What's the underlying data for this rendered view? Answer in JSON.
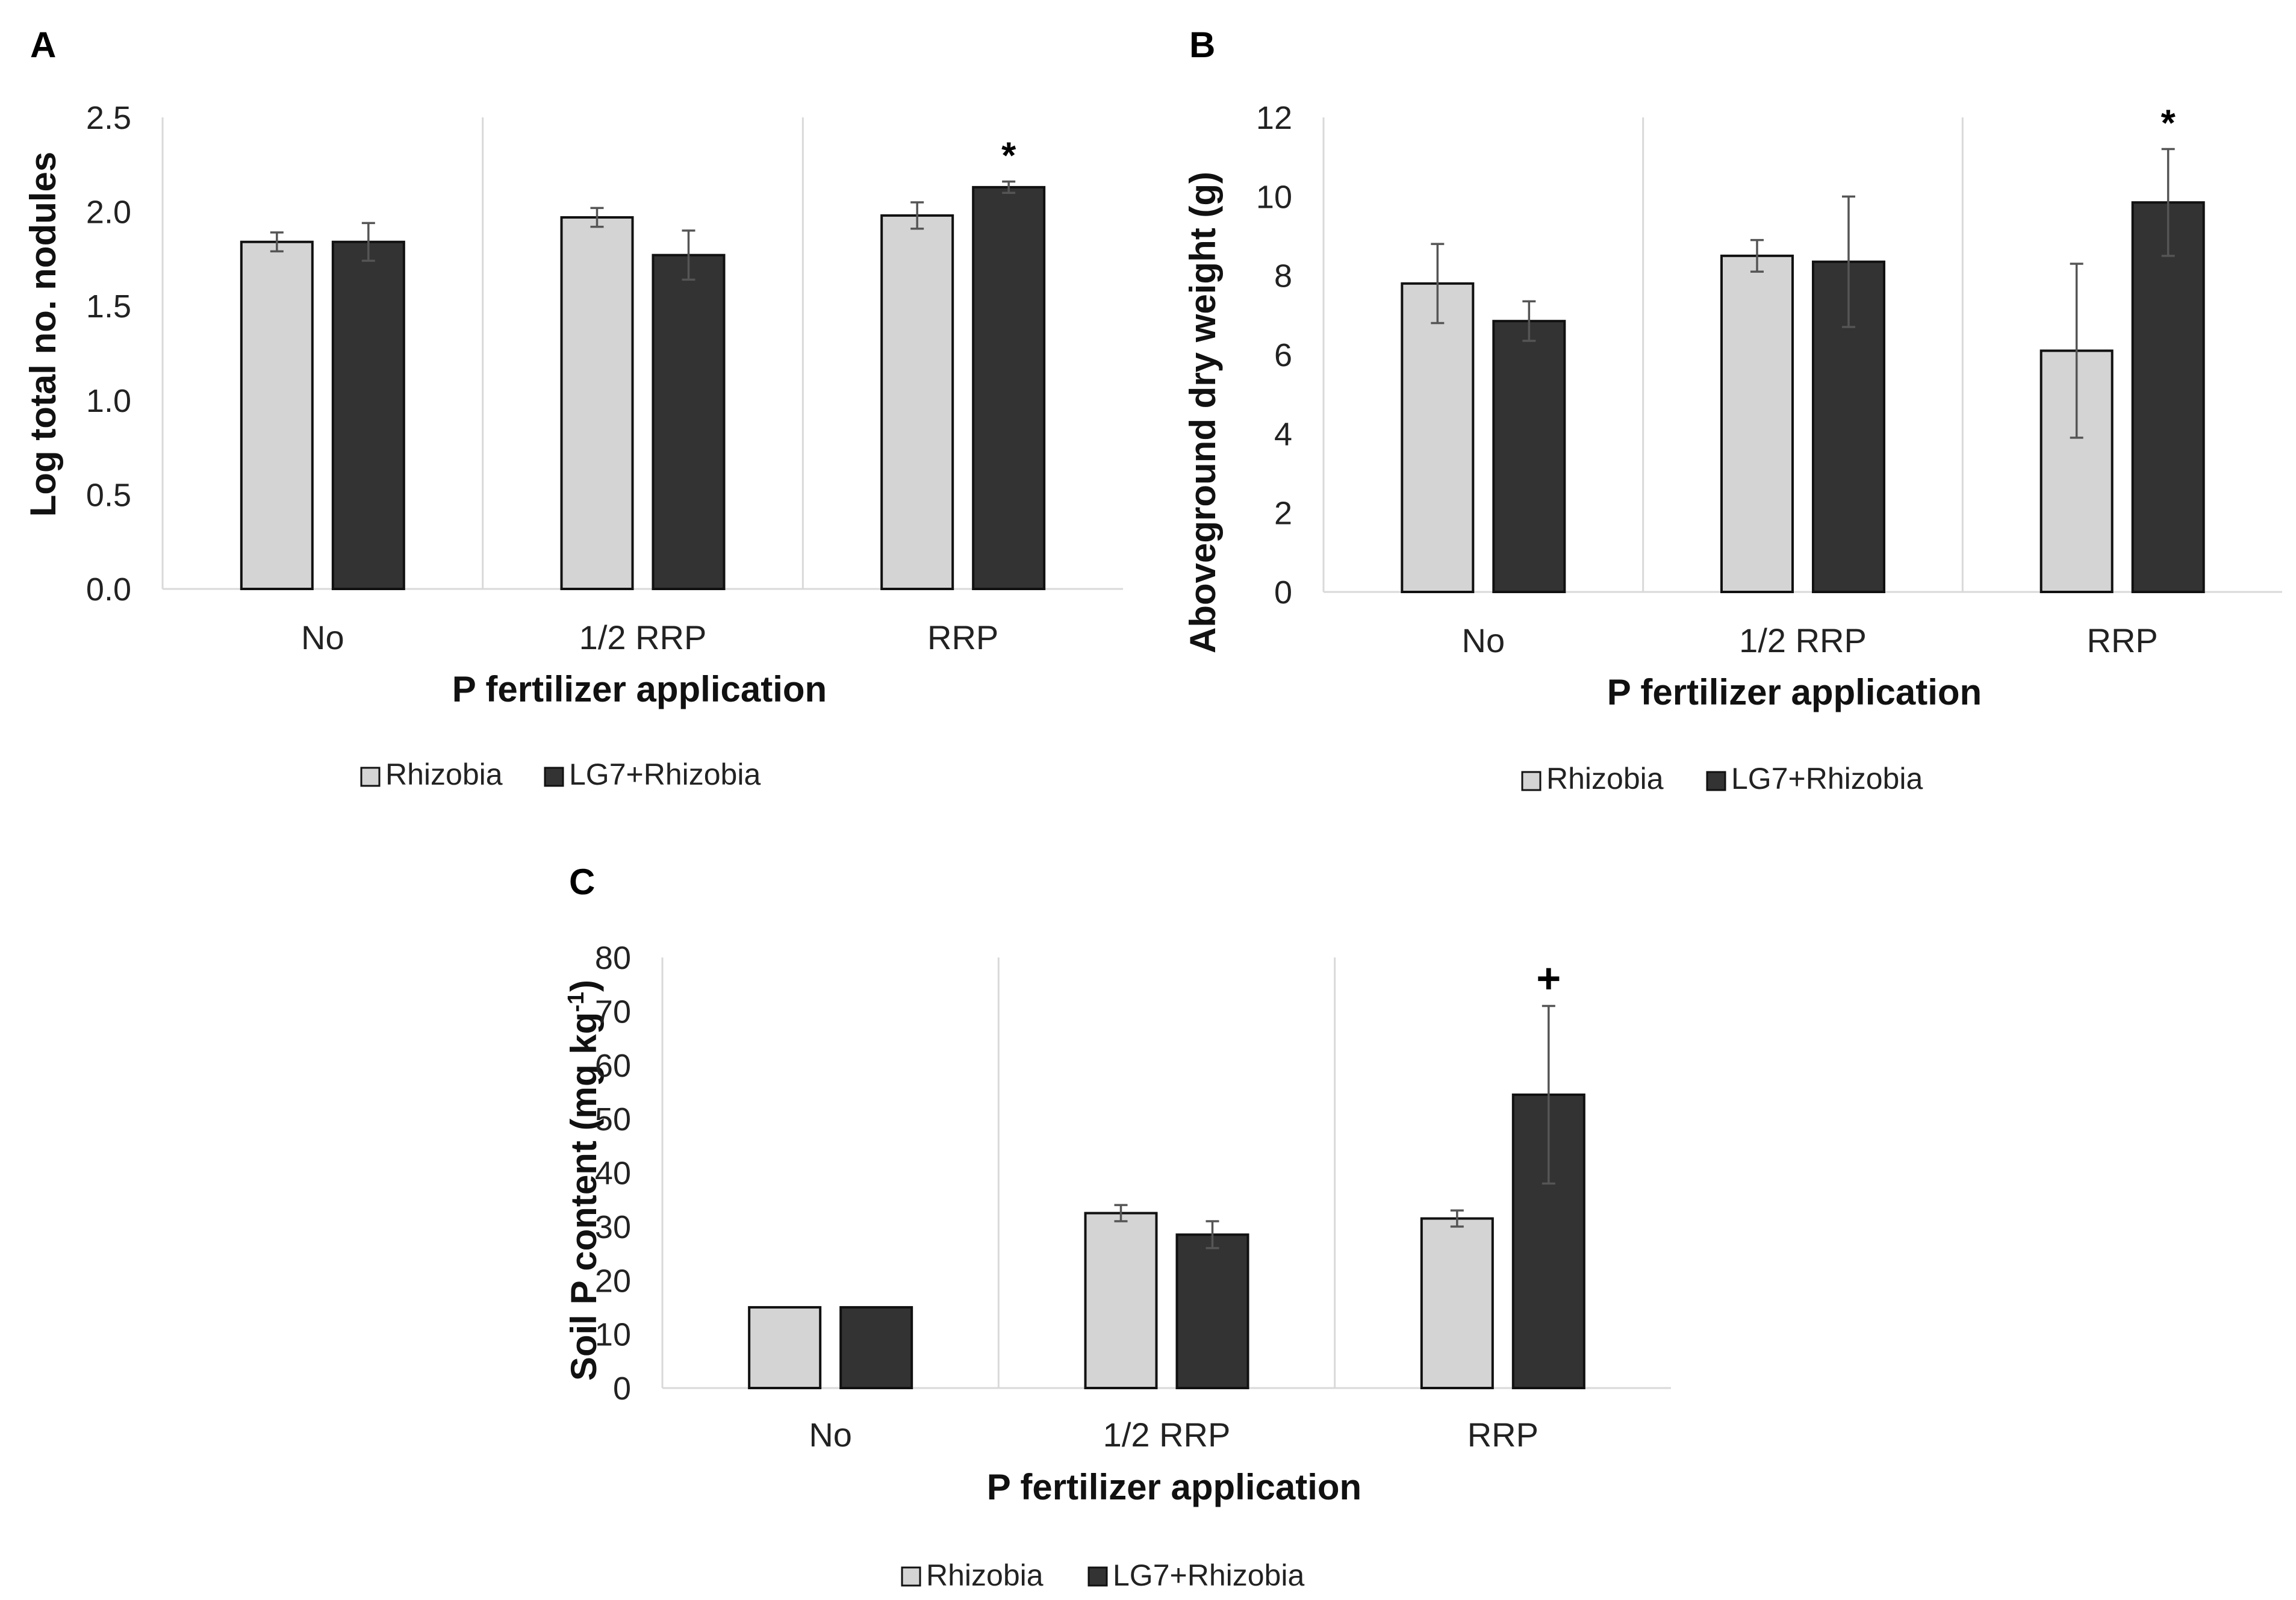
{
  "chart_data": [
    {
      "type": "bar",
      "panel": "A",
      "categories": [
        "No",
        "1/2 RRP",
        "RRP"
      ],
      "series": [
        {
          "name": "Rhizobia",
          "values": [
            1.84,
            1.97,
            1.98
          ],
          "errors": [
            0.05,
            0.05,
            0.07
          ]
        },
        {
          "name": "LG7+Rhizobia",
          "values": [
            1.84,
            1.77,
            2.13
          ],
          "errors": [
            0.1,
            0.13,
            0.03
          ]
        }
      ],
      "xlabel": "P fertilizer application",
      "ylabel": "Log total no. nodules",
      "ylim": [
        0,
        2.5
      ],
      "yticks": [
        "0.0",
        "0.5",
        "1.0",
        "1.5",
        "2.0",
        "2.5"
      ],
      "annotations": [
        {
          "text": "*",
          "category": "RRP",
          "series": "LG7+Rhizobia"
        }
      ],
      "legend": "bottom",
      "colors": {
        "Rhizobia": "#d4d4d4",
        "LG7+Rhizobia": "#333333"
      }
    },
    {
      "type": "bar",
      "panel": "B",
      "categories": [
        "No",
        "1/2 RRP",
        "RRP"
      ],
      "series": [
        {
          "name": "Rhizobia",
          "values": [
            7.8,
            8.5,
            6.1
          ],
          "errors": [
            1.0,
            0.4,
            2.2
          ]
        },
        {
          "name": "LG7+Rhizobia",
          "values": [
            6.85,
            8.35,
            9.85
          ],
          "errors": [
            0.5,
            1.65,
            1.35
          ]
        }
      ],
      "xlabel": "P fertilizer application",
      "ylabel": "Aboveground dry weight (g)",
      "ylim": [
        0,
        12
      ],
      "yticks": [
        "0",
        "2",
        "4",
        "6",
        "8",
        "10",
        "12"
      ],
      "annotations": [
        {
          "text": "*",
          "category": "RRP",
          "series": "LG7+Rhizobia"
        }
      ],
      "legend": "bottom",
      "colors": {
        "Rhizobia": "#d4d4d4",
        "LG7+Rhizobia": "#333333"
      }
    },
    {
      "type": "bar",
      "panel": "C",
      "categories": [
        "No",
        "1/2 RRP",
        "RRP"
      ],
      "series": [
        {
          "name": "Rhizobia",
          "values": [
            15,
            32.5,
            31.5
          ],
          "errors": [
            0,
            1.5,
            1.5
          ]
        },
        {
          "name": "LG7+Rhizobia",
          "values": [
            15,
            28.5,
            54.5
          ],
          "errors": [
            0,
            2.5,
            16.5
          ]
        }
      ],
      "xlabel": "P fertilizer application",
      "ylabel_main": "Soil P content (mg kg",
      "ylabel_sup": "-1",
      "ylabel_close": ")",
      "ylim": [
        0,
        80
      ],
      "yticks": [
        "0",
        "10",
        "20",
        "30",
        "40",
        "50",
        "60",
        "70",
        "80"
      ],
      "annotations": [
        {
          "text": "+",
          "category": "RRP",
          "series": "LG7+Rhizobia"
        }
      ],
      "legend": "bottom",
      "colors": {
        "Rhizobia": "#d4d4d4",
        "LG7+Rhizobia": "#333333"
      }
    }
  ]
}
